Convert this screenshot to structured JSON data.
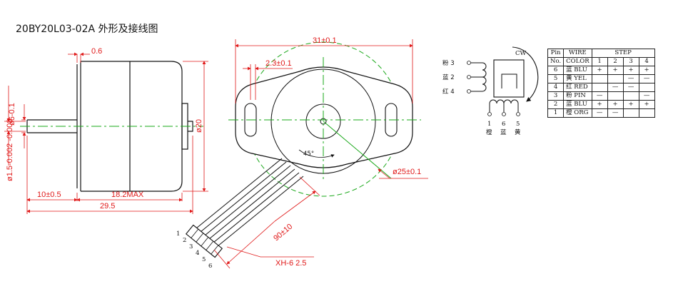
{
  "title": "20BY20L03-02A 外形及接线图",
  "side_view": {
    "flange_thickness": "0.6",
    "shaft_diameter": "ø6-0.1",
    "shaft_tip_diameter": "ø1.5-0.002 -0.008",
    "shaft_length": "10±0.5",
    "body_length": "18.2MAX",
    "overall_length": "29.5",
    "body_diameter": "ø20"
  },
  "front_view": {
    "flange_width": "31±0.1",
    "hole_offset": "2.3±0.1",
    "angle": "45°",
    "bolt_circle": "ø25±0.1",
    "lead_length": "90±10",
    "connector": "XH-6 2.5",
    "pin_numbers": [
      "1",
      "2",
      "3",
      "4",
      "5",
      "6"
    ]
  },
  "schematic": {
    "rotation": "CW",
    "left_pins": [
      "粉 3",
      "蓝 2",
      "红 4"
    ],
    "bottom_pins": [
      "1",
      "6",
      "5"
    ],
    "bottom_colors": [
      "橙",
      "蓝",
      "黄"
    ]
  },
  "wiring_table": {
    "headers": {
      "pin": "Pin",
      "no": "No.",
      "wire": "WIRE",
      "color": "COLOR",
      "step": "STEP"
    },
    "steps": [
      "1",
      "2",
      "3",
      "4"
    ],
    "rows": [
      {
        "pin": "6",
        "color": "蓝 BLU",
        "steps": [
          "+",
          "+",
          "+",
          "+"
        ]
      },
      {
        "pin": "5",
        "color": "黄 YEL",
        "steps": [
          "",
          "",
          "—",
          "—"
        ]
      },
      {
        "pin": "4",
        "color": "红 RED",
        "steps": [
          "",
          "—",
          "—",
          ""
        ]
      },
      {
        "pin": "3",
        "color": "粉 PIN",
        "steps": [
          "—",
          "",
          "",
          "—"
        ]
      },
      {
        "pin": "2",
        "color": "蓝 BLU",
        "steps": [
          "+",
          "+",
          "+",
          "+"
        ]
      },
      {
        "pin": "1",
        "color": "橙 ORG",
        "steps": [
          "—",
          "—",
          "",
          ""
        ]
      }
    ]
  },
  "colors": {
    "drawing": "#e01919",
    "center_line": "#1aa81a",
    "ink": "#111111"
  }
}
